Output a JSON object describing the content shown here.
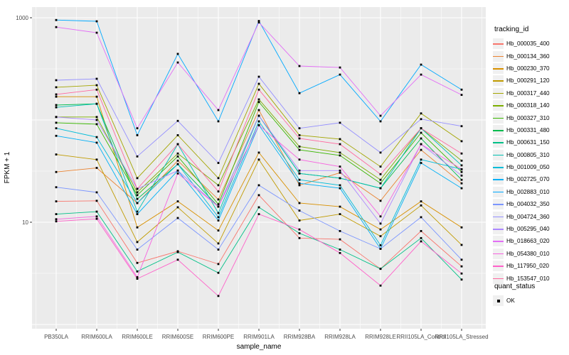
{
  "panel": {
    "bg": "#EBEBEB",
    "grid_color": "#FFFFFF",
    "point_color": "#000000",
    "tick_label_color": "#4D4D4D",
    "axis_title_color": "#000000"
  },
  "chart_data": {
    "type": "line",
    "title": "",
    "xlabel": "sample_name",
    "ylabel": "FPKM + 1",
    "y_scale": "log10",
    "ylim": [
      0.9,
      1270
    ],
    "y_tick_values": [
      1000,
      10
    ],
    "y_major_gridlines": [
      1000,
      100,
      10,
      1
    ],
    "y_minor_gridlines": [
      316.2,
      31.62,
      3.162
    ],
    "grid": true,
    "legend_position": "right",
    "legend_title": "tracking_id",
    "point_marker": "black-square",
    "categories": [
      "PB350LA",
      "RRIM600LA",
      "RRIM600LE",
      "RRIM600SE",
      "RRIM600PE",
      "RRIM901LA",
      "RRIM928BA",
      "RRIM928LA",
      "RRIM928LE",
      "RRII105LA_Control",
      "RRII105LA_Stressed"
    ],
    "series": [
      {
        "name": "Hb_000035_400",
        "color": "#F8766D",
        "values": [
          16,
          16.2,
          4.0,
          5.2,
          3.9,
          18.4,
          7.0,
          6.8,
          3.5,
          8.2,
          3.7
        ]
      },
      {
        "name": "Hb_000134_360",
        "color": "#EA8331",
        "values": [
          31,
          34,
          15.4,
          40,
          16.7,
          125,
          23,
          30.5,
          16.2,
          51,
          24
        ]
      },
      {
        "name": "Hb_000230_370",
        "color": "#D89000",
        "values": [
          169,
          169,
          8.9,
          16,
          8.3,
          48,
          15.4,
          14.2,
          8.5,
          16,
          8.9
        ]
      },
      {
        "name": "Hb_000291_120",
        "color": "#C09B00",
        "values": [
          46,
          41,
          6.4,
          14,
          6.2,
          41,
          10.4,
          12,
          7.3,
          14.6,
          6.0
        ]
      },
      {
        "name": "Hb_000317_440",
        "color": "#A3A500",
        "values": [
          209,
          219,
          27,
          71,
          27,
          226,
          71,
          65,
          35,
          116,
          62
        ]
      },
      {
        "name": "Hb_000318_140",
        "color": "#7CAE00",
        "values": [
          107,
          107,
          19.6,
          47,
          23,
          159,
          55,
          48,
          26,
          83,
          40
        ]
      },
      {
        "name": "Hb_000327_310",
        "color": "#39B600",
        "values": [
          94,
          91,
          18.4,
          44,
          15.0,
          150,
          51,
          45,
          24,
          75,
          31
        ]
      },
      {
        "name": "Hb_000331_480",
        "color": "#00BB4E",
        "values": [
          140,
          144,
          16.9,
          37,
          14.2,
          110,
          30,
          27,
          21.5,
          66,
          26
        ]
      },
      {
        "name": "Hb_000631_150",
        "color": "#00C087",
        "values": [
          12,
          12.7,
          3.3,
          5.1,
          3.2,
          14,
          7.8,
          5.4,
          3.5,
          7.0,
          2.75
        ]
      },
      {
        "name": "Hb_000805_310",
        "color": "#00C0B2",
        "values": [
          133,
          144,
          12.7,
          58,
          12.3,
          110,
          30,
          27,
          21.5,
          83,
          36
        ]
      },
      {
        "name": "Hb_001009_050",
        "color": "#00BCD8",
        "values": [
          83,
          68,
          15.4,
          37,
          11.2,
          97,
          26,
          23,
          5.95,
          41,
          33
        ]
      },
      {
        "name": "Hb_002725_070",
        "color": "#00B0F6",
        "values": [
          70,
          60,
          12,
          32,
          10.4,
          89,
          24,
          21.5,
          5.5,
          38,
          21.5
        ]
      },
      {
        "name": "Hb_002883_010",
        "color": "#00A9FF",
        "values": [
          950,
          923,
          71,
          443,
          97,
          930,
          183,
          278,
          97,
          348,
          198
        ]
      },
      {
        "name": "Hb_004032_350",
        "color": "#7C96FF",
        "values": [
          22,
          19.6,
          5.4,
          11,
          5.4,
          23,
          13,
          8.2,
          5.5,
          11.2,
          4.3
        ]
      },
      {
        "name": "Hb_004724_360",
        "color": "#9590FF",
        "values": [
          245,
          253,
          44,
          98,
          38,
          265,
          83,
          94,
          48,
          102,
          87
        ]
      },
      {
        "name": "Hb_005295_040",
        "color": "#AC88FF",
        "values": [
          107,
          100,
          21.2,
          32,
          14.2,
          110,
          32,
          32,
          9.7,
          58,
          28.6
        ]
      },
      {
        "name": "Hb_018663_020",
        "color": "#E36EF6",
        "values": [
          810,
          714,
          83,
          365,
          125,
          900,
          337,
          326,
          110,
          278,
          176
        ]
      },
      {
        "name": "Hb_054380_010",
        "color": "#F763E0",
        "values": [
          10.7,
          11.4,
          2.9,
          30,
          14.2,
          89,
          41,
          35,
          11.4,
          58,
          33
        ]
      },
      {
        "name": "Hb_117950_020",
        "color": "#FF61C9",
        "values": [
          10.2,
          10.8,
          2.8,
          4.3,
          1.9,
          12,
          8.5,
          5.0,
          2.4,
          6.5,
          3.15
        ]
      },
      {
        "name": "Hb_153547_010",
        "color": "#FF689F",
        "values": [
          178,
          198,
          21.2,
          58,
          20,
          198,
          66,
          58,
          29.5,
          83,
          47
        ]
      }
    ],
    "quant_status": {
      "title": "quant_status",
      "items": [
        "OK"
      ]
    }
  },
  "axis": {
    "y_tick_labels": [
      "1000",
      "10"
    ]
  }
}
